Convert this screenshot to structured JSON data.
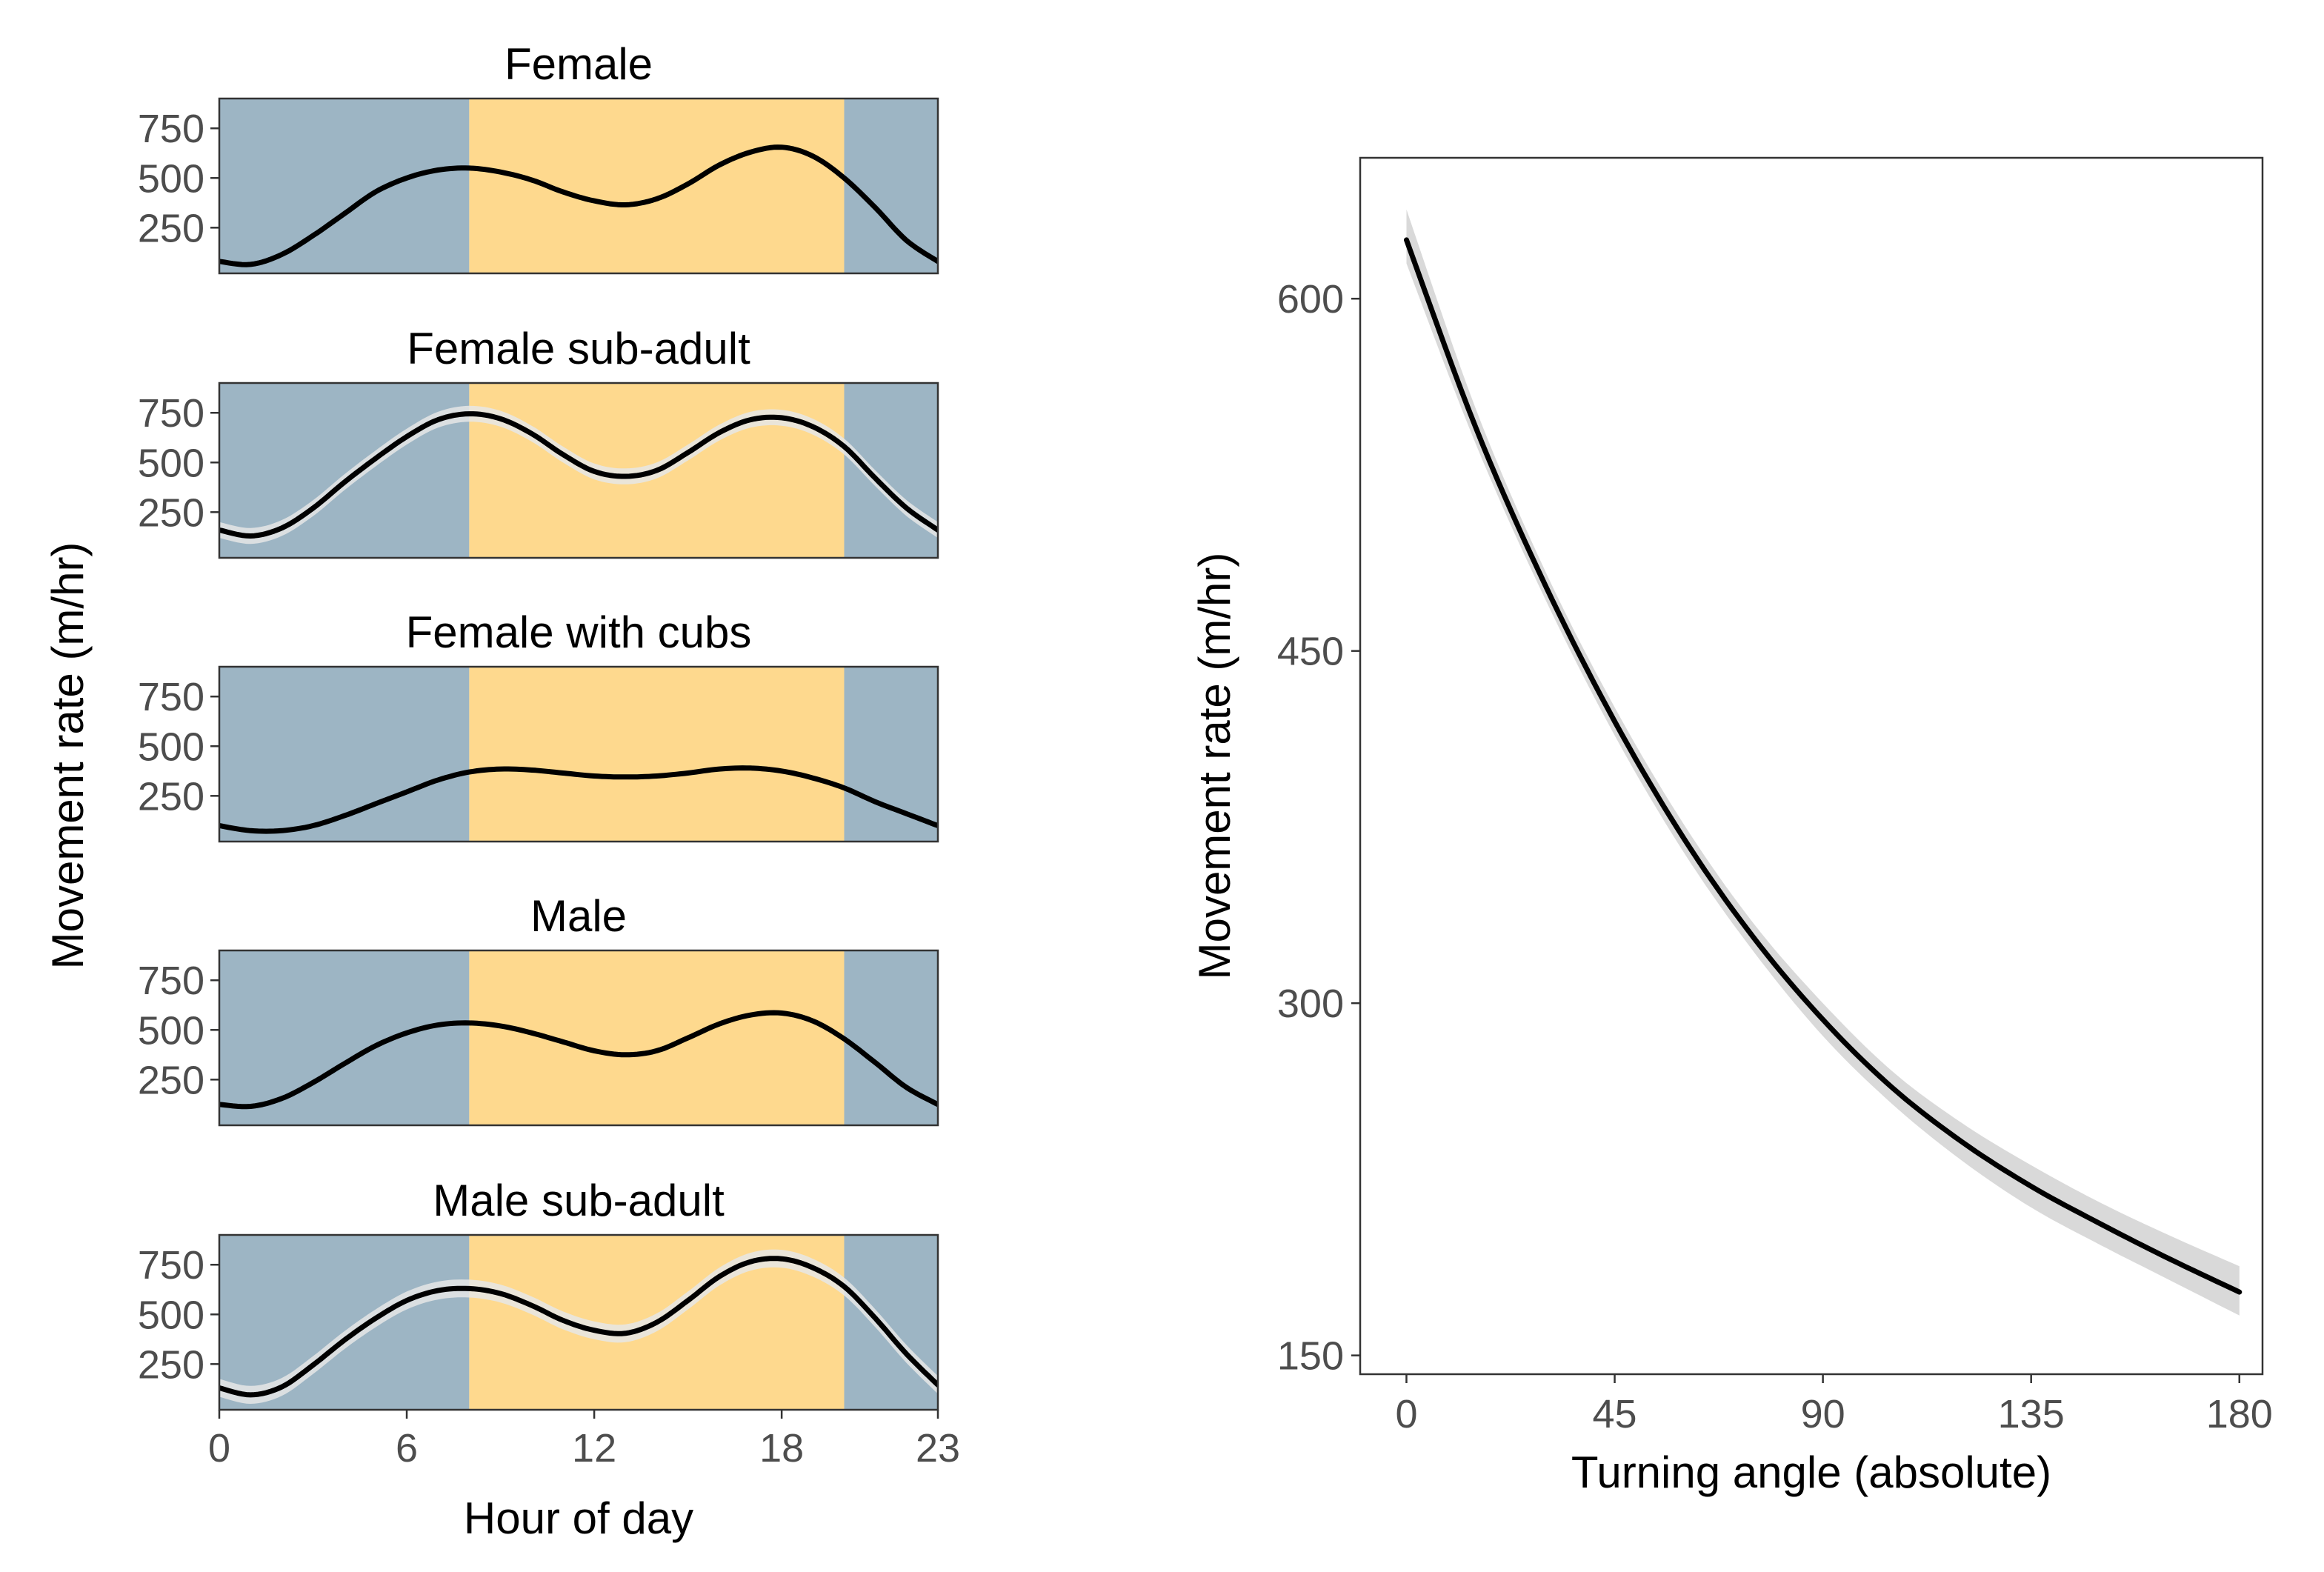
{
  "chart_data": [
    {
      "type": "line",
      "title": "",
      "xlabel": "Hour of day",
      "ylabel": "Movement rate (m/hr)",
      "xlim": [
        0,
        23
      ],
      "ylim": [
        20,
        900
      ],
      "x_ticks": [
        "0",
        "6",
        "12",
        "18",
        "23"
      ],
      "x_tick_values": [
        0,
        6,
        12,
        18,
        23
      ],
      "y_ticks": [
        "250",
        "500",
        "750"
      ],
      "y_tick_values": [
        250,
        500,
        750
      ],
      "background_bands": [
        {
          "name": "night",
          "from": 0,
          "to": 8,
          "color": "#9db5c4"
        },
        {
          "name": "day",
          "from": 8,
          "to": 20,
          "color": "#fed98e"
        },
        {
          "name": "night",
          "from": 20,
          "to": 23,
          "color": "#9db5c4"
        }
      ],
      "line_color": "#000000",
      "ribbon_color": "#e6e6e6",
      "panels": [
        {
          "label": "Female",
          "x": [
            0,
            1,
            2,
            3,
            4,
            5,
            6,
            7,
            8,
            9,
            10,
            11,
            12,
            13,
            14,
            15,
            16,
            17,
            18,
            19,
            20,
            21,
            22,
            23
          ],
          "values": [
            80,
            65,
            115,
            210,
            320,
            430,
            500,
            540,
            550,
            530,
            490,
            430,
            385,
            365,
            395,
            470,
            565,
            630,
            655,
            610,
            500,
            350,
            185,
            80
          ],
          "ci_half": 12
        },
        {
          "label": "Female sub-adult",
          "x": [
            0,
            1,
            2,
            3,
            4,
            5,
            6,
            7,
            8,
            9,
            10,
            11,
            12,
            13,
            14,
            15,
            16,
            17,
            18,
            19,
            20,
            21,
            22,
            23
          ],
          "values": [
            160,
            130,
            170,
            270,
            400,
            520,
            630,
            715,
            745,
            720,
            645,
            540,
            455,
            430,
            460,
            550,
            650,
            715,
            725,
            680,
            580,
            420,
            270,
            160
          ],
          "ci_half": 40
        },
        {
          "label": "Female with cubs",
          "x": [
            0,
            1,
            2,
            3,
            4,
            5,
            6,
            7,
            8,
            9,
            10,
            11,
            12,
            13,
            14,
            15,
            16,
            17,
            18,
            19,
            20,
            21,
            22,
            23
          ],
          "values": [
            100,
            75,
            75,
            100,
            150,
            210,
            270,
            330,
            370,
            385,
            380,
            365,
            350,
            345,
            350,
            365,
            385,
            390,
            375,
            340,
            290,
            220,
            160,
            100
          ],
          "ci_half": 12
        },
        {
          "label": "Male",
          "x": [
            0,
            1,
            2,
            3,
            4,
            5,
            6,
            7,
            8,
            9,
            10,
            11,
            12,
            13,
            14,
            15,
            16,
            17,
            18,
            19,
            20,
            21,
            22,
            23
          ],
          "values": [
            125,
            115,
            155,
            235,
            330,
            420,
            485,
            525,
            535,
            520,
            485,
            440,
            395,
            375,
            395,
            460,
            530,
            575,
            585,
            545,
            455,
            335,
            210,
            125
          ],
          "ci_half": 12
        },
        {
          "label": "Male sub-adult",
          "x": [
            0,
            1,
            2,
            3,
            4,
            5,
            6,
            7,
            8,
            9,
            10,
            11,
            12,
            13,
            14,
            15,
            16,
            17,
            18,
            19,
            20,
            21,
            22,
            23
          ],
          "values": [
            130,
            95,
            135,
            245,
            370,
            480,
            570,
            620,
            630,
            605,
            545,
            470,
            420,
            405,
            460,
            570,
            690,
            765,
            780,
            735,
            640,
            480,
            300,
            145
          ],
          "ci_half": 45
        }
      ]
    },
    {
      "type": "line",
      "title": "",
      "xlabel": "Turning angle (absolute)",
      "ylabel": "Movement rate (m/hr)",
      "xlim": [
        -10,
        185
      ],
      "ylim": [
        142,
        660
      ],
      "x_ticks": [
        "0",
        "45",
        "90",
        "135",
        "180"
      ],
      "x_tick_values": [
        0,
        45,
        90,
        135,
        180
      ],
      "y_ticks": [
        "150",
        "300",
        "450",
        "600"
      ],
      "y_tick_values": [
        150,
        300,
        450,
        600
      ],
      "line_color": "#000000",
      "ribbon_color": "#d9d9d9",
      "series": [
        {
          "name": "fit",
          "x": [
            0,
            15,
            30,
            45,
            60,
            75,
            90,
            105,
            120,
            135,
            150,
            165,
            180
          ],
          "values": [
            625,
            545,
            478,
            420,
            370,
            328,
            293,
            264,
            241,
            222,
            206,
            191,
            177
          ],
          "lower": [
            615,
            538,
            472,
            414,
            364,
            322,
            286,
            257,
            233,
            213,
            197,
            182,
            167
          ],
          "upper": [
            638,
            553,
            484,
            426,
            376,
            334,
            300,
            271,
            249,
            231,
            215,
            201,
            188
          ]
        }
      ]
    }
  ]
}
